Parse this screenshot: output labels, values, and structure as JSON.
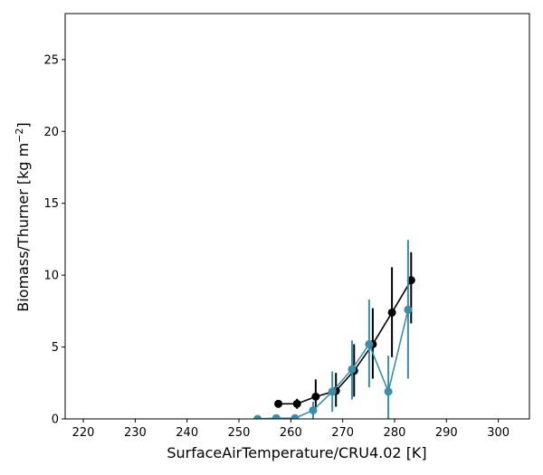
{
  "chart_data": {
    "type": "line",
    "title": "",
    "xlabel": "SurfaceAirTemperature/CRU4.02 [K]",
    "ylabel_main": "Biomass/Thurner [kg m",
    "ylabel_sup": "−2",
    "ylabel_tail": "]",
    "xlim": [
      216.5,
      306
    ],
    "ylim": [
      0,
      28.2
    ],
    "x_ticks": [
      220,
      230,
      240,
      250,
      260,
      270,
      280,
      290,
      300
    ],
    "y_ticks": [
      0,
      5,
      10,
      15,
      20,
      25
    ],
    "grid": false,
    "legend": "none",
    "series": [
      {
        "color": "#000000",
        "points": [
          {
            "x": 257.6,
            "y": 1.05,
            "err_low": 0.05,
            "err_high": 0.05
          },
          {
            "x": 261.2,
            "y": 1.05,
            "err_low": 0.35,
            "err_high": 0.35
          },
          {
            "x": 264.8,
            "y": 1.55,
            "err_low": 1.1,
            "err_high": 1.2
          },
          {
            "x": 268.7,
            "y": 1.95,
            "err_low": 1.1,
            "err_high": 1.25
          },
          {
            "x": 272.2,
            "y": 3.35,
            "err_low": 1.8,
            "err_high": 1.85
          },
          {
            "x": 275.8,
            "y": 5.2,
            "err_low": 2.4,
            "err_high": 2.5
          },
          {
            "x": 279.5,
            "y": 7.4,
            "err_low": 3.1,
            "err_high": 3.15
          },
          {
            "x": 283.2,
            "y": 9.65,
            "err_low": 3.0,
            "err_high": 1.95
          }
        ]
      },
      {
        "color": "#3a8ea8",
        "points": [
          {
            "x": 253.6,
            "y": 0.0,
            "err_low": 0,
            "err_high": 0.05
          },
          {
            "x": 257.2,
            "y": 0.05,
            "err_low": 0.05,
            "err_high": 0.1
          },
          {
            "x": 260.8,
            "y": 0.05,
            "err_low": 0.05,
            "err_high": 0.2
          },
          {
            "x": 264.3,
            "y": 0.6,
            "err_low": 0.6,
            "err_high": 0.6
          },
          {
            "x": 268.0,
            "y": 1.9,
            "err_low": 1.4,
            "err_high": 1.4
          },
          {
            "x": 271.8,
            "y": 3.45,
            "err_low": 2.1,
            "err_high": 2.0
          },
          {
            "x": 275.1,
            "y": 5.2,
            "err_low": 3.0,
            "err_high": 3.1
          },
          {
            "x": 278.8,
            "y": 1.9,
            "err_low": 1.9,
            "err_high": 2.5
          },
          {
            "x": 282.6,
            "y": 7.6,
            "err_low": 4.8,
            "err_high": 4.85
          }
        ]
      }
    ]
  }
}
